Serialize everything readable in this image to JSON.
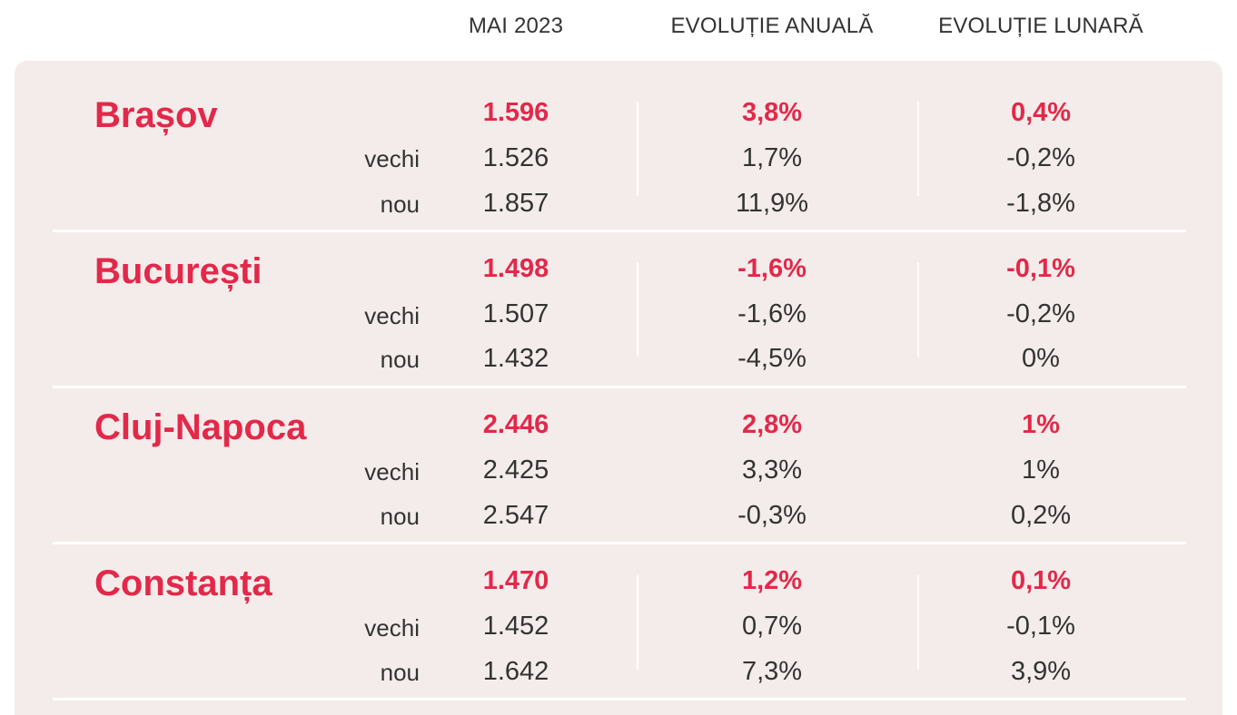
{
  "headers": {
    "col1": "MAI 2023",
    "col2": "EVOLUȚIE ANUALĂ",
    "col3": "EVOLUȚIE LUNARĂ"
  },
  "row_labels": {
    "old": "vechi",
    "new": "nou"
  },
  "accent_color": "#e3284a",
  "panel_color": "#f4ecea",
  "cities": [
    {
      "name": "Brașov",
      "main": [
        "1.596",
        "3,8%",
        "0,4%"
      ],
      "old": [
        "1.526",
        "1,7%",
        "-0,2%"
      ],
      "new": [
        "1.857",
        "11,9%",
        "-1,8%"
      ]
    },
    {
      "name": "București",
      "main": [
        "1.498",
        "-1,6%",
        "-0,1%"
      ],
      "old": [
        "1.507",
        "-1,6%",
        "-0,2%"
      ],
      "new": [
        "1.432",
        "-4,5%",
        "0%"
      ]
    },
    {
      "name": "Cluj-Napoca",
      "main": [
        "2.446",
        "2,8%",
        "1%"
      ],
      "old": [
        "2.425",
        "3,3%",
        "1%"
      ],
      "new": [
        "2.547",
        "-0,3%",
        "0,2%"
      ]
    },
    {
      "name": "Constanța",
      "main": [
        "1.470",
        "1,2%",
        "0,1%"
      ],
      "old": [
        "1.452",
        "0,7%",
        "-0,1%"
      ],
      "new": [
        "1.642",
        "7,3%",
        "3,9%"
      ]
    }
  ]
}
